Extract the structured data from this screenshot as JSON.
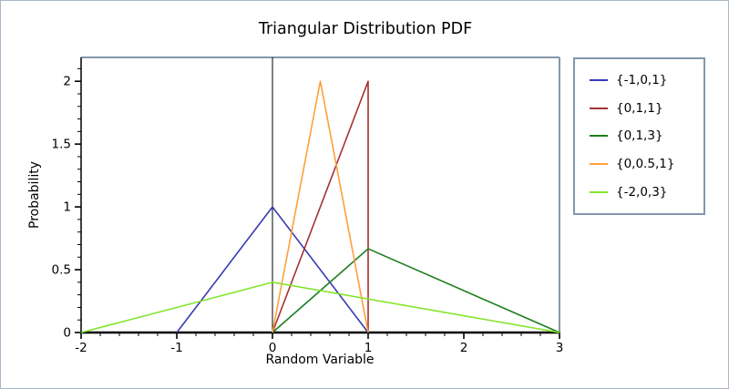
{
  "window": {
    "background": "#ffffff",
    "border_color": "#aab6c8"
  },
  "chart_data": {
    "type": "line",
    "title": "Triangular Distribution PDF",
    "xlabel": "Random Variable",
    "ylabel": "Probability",
    "xlim": [
      -2,
      3
    ],
    "ylim": [
      0,
      2.19
    ],
    "xticks": [
      -2,
      -1,
      0,
      1,
      2,
      3
    ],
    "xtick_labels": [
      "-2",
      "-1",
      "0",
      "1",
      "2",
      "3"
    ],
    "yticks": [
      0,
      0.5,
      1,
      1.5,
      2
    ],
    "ytick_labels": [
      "0",
      "0.5",
      "1",
      "1.5",
      "2"
    ],
    "x_minor_step": 0.2,
    "y_minor_step": 0.1,
    "grid": false,
    "frame_color": "#8496aa",
    "axis_color": "#000000",
    "marker_line": {
      "x": 0,
      "color": "#000000"
    },
    "legend_position": "right-outside",
    "series": [
      {
        "name": "{-1,0,1}",
        "color": "#3939b4",
        "points": [
          [
            -1,
            0
          ],
          [
            0,
            1
          ],
          [
            1,
            0
          ]
        ]
      },
      {
        "name": "{0,1,1}",
        "color": "#a53232",
        "points": [
          [
            0,
            0
          ],
          [
            1,
            2
          ],
          [
            1,
            0
          ]
        ]
      },
      {
        "name": "{0,1,3}",
        "color": "#1e7d1e",
        "points": [
          [
            0,
            0
          ],
          [
            1,
            0.6667
          ],
          [
            3,
            0
          ]
        ]
      },
      {
        "name": "{0,0.5,1}",
        "color": "#ff9f3a",
        "points": [
          [
            0,
            0
          ],
          [
            0.5,
            2
          ],
          [
            1,
            0
          ]
        ]
      },
      {
        "name": "{-2,0,3}",
        "color": "#84e52e",
        "points": [
          [
            -2,
            0
          ],
          [
            0,
            0.4
          ],
          [
            3,
            0
          ]
        ]
      }
    ]
  }
}
